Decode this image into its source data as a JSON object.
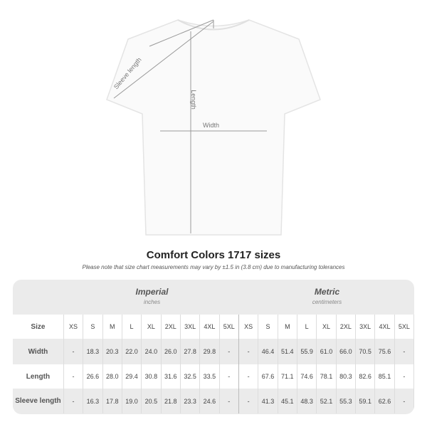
{
  "diagram_labels": {
    "sleeve": "Sleeve length",
    "length": "Length",
    "width": "Width"
  },
  "title": "Comfort Colors 1717 sizes",
  "note": "Please note that size chart measurements may vary by ±1.5 in (3.8 cm) due to manufacturing tolerances",
  "imperial": {
    "heading": "Imperial",
    "unit": "inches"
  },
  "metric": {
    "heading": "Metric",
    "unit": "centimeters"
  },
  "sizes": [
    "XS",
    "S",
    "M",
    "L",
    "XL",
    "2XL",
    "3XL",
    "4XL",
    "5XL"
  ],
  "rows": [
    {
      "label": "Size"
    },
    {
      "label": "Width",
      "imperial": [
        "-",
        "18.3",
        "20.3",
        "22.0",
        "24.0",
        "26.0",
        "27.8",
        "29.8",
        "-"
      ],
      "metric": [
        "-",
        "46.4",
        "51.4",
        "55.9",
        "61.0",
        "66.0",
        "70.5",
        "75.6",
        "-"
      ]
    },
    {
      "label": "Length",
      "imperial": [
        "-",
        "26.6",
        "28.0",
        "29.4",
        "30.8",
        "31.6",
        "32.5",
        "33.5",
        "-"
      ],
      "metric": [
        "-",
        "67.6",
        "71.1",
        "74.6",
        "78.1",
        "80.3",
        "82.6",
        "85.1",
        "-"
      ]
    },
    {
      "label": "Sleeve length",
      "imperial": [
        "-",
        "16.3",
        "17.8",
        "19.0",
        "20.5",
        "21.8",
        "23.3",
        "24.6",
        "-"
      ],
      "metric": [
        "-",
        "41.3",
        "45.1",
        "48.3",
        "52.1",
        "55.3",
        "59.1",
        "62.6",
        "-"
      ]
    }
  ]
}
